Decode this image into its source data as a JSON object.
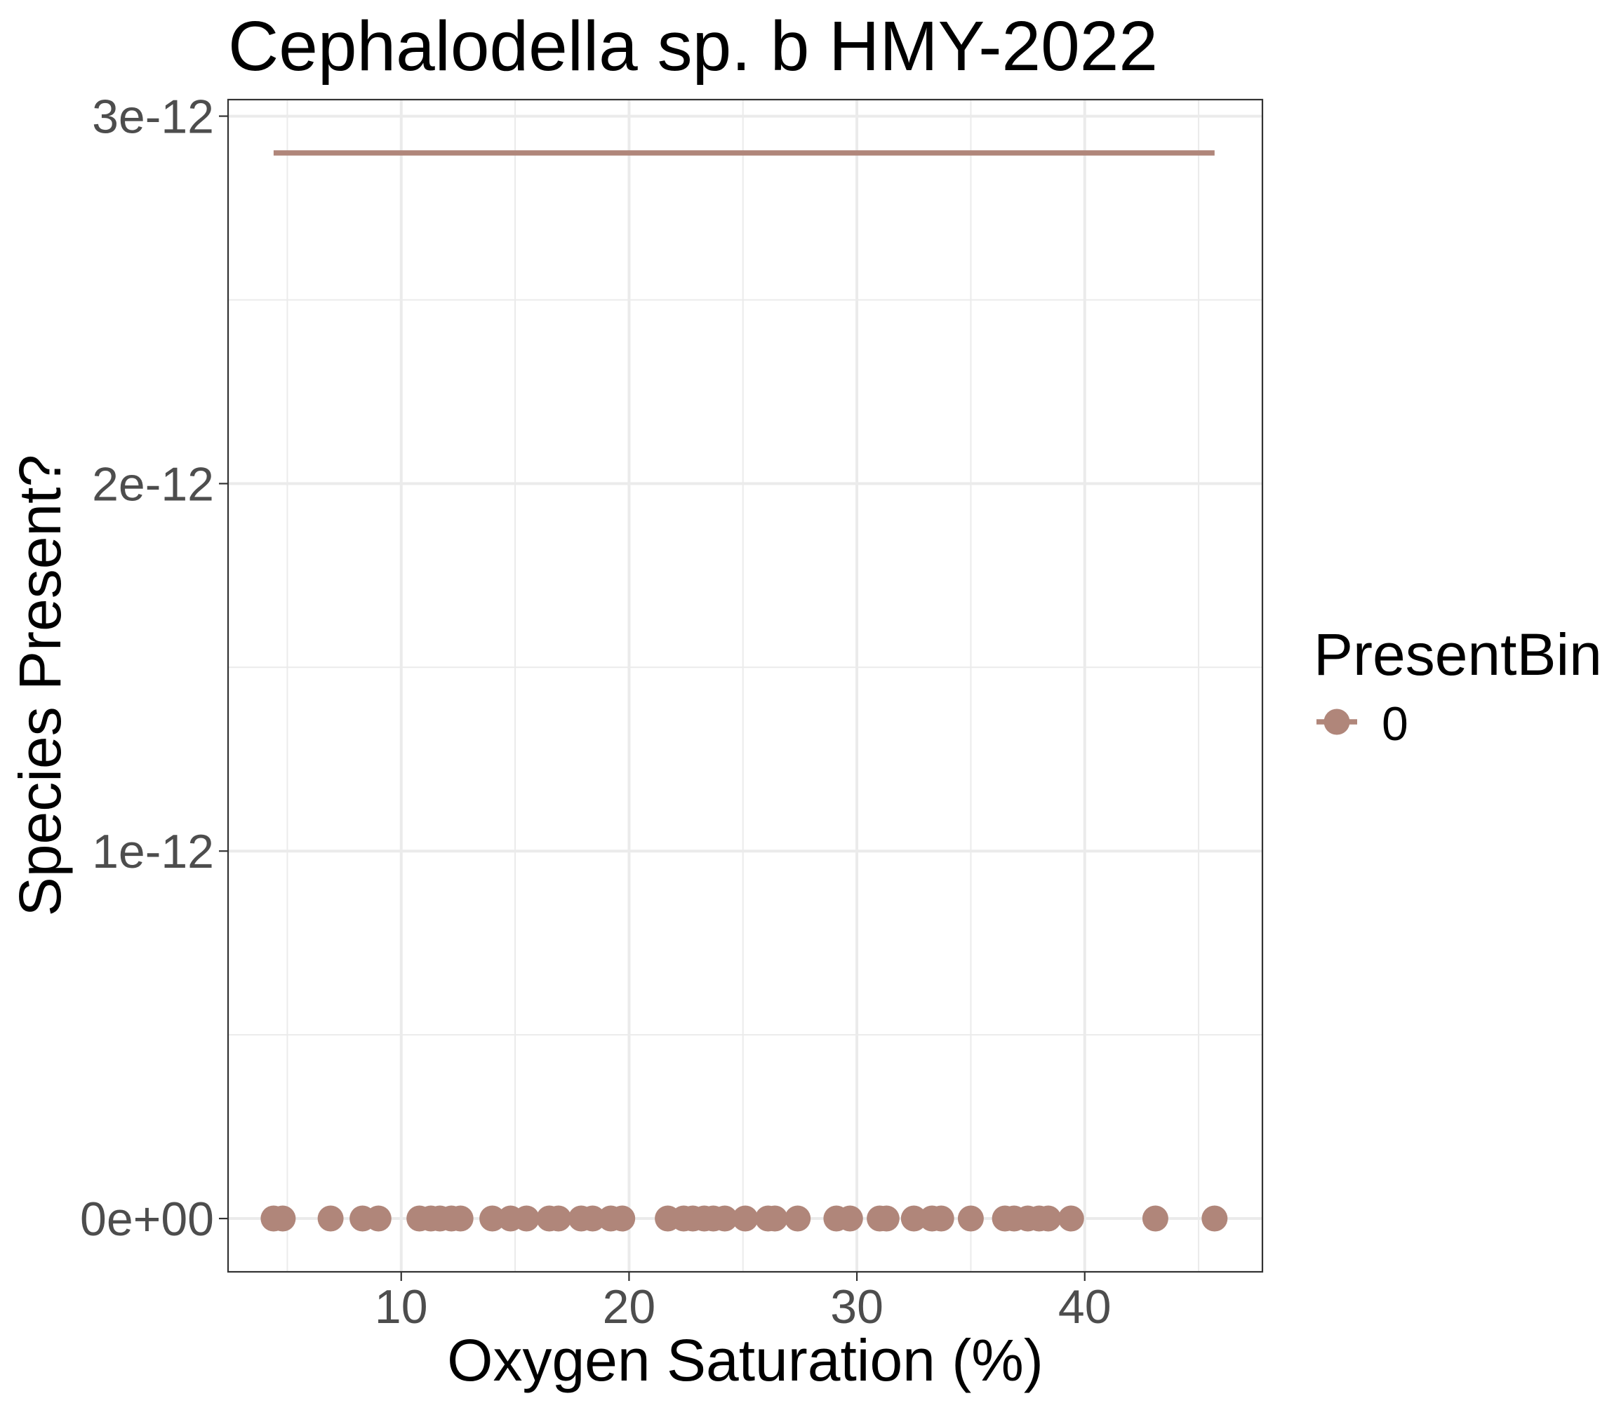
{
  "chart_data": {
    "type": "scatter",
    "title": "Cephalodella sp. b HMY-2022",
    "xlabel": "Oxygen Saturation (%)",
    "ylabel": "Species Present?",
    "xlim": [
      2.4,
      47.8
    ],
    "ylim": [
      -1.45e-13,
      3.045e-12
    ],
    "x_ticks": [
      10,
      20,
      30,
      40
    ],
    "x_tick_labels": [
      "10",
      "20",
      "30",
      "40"
    ],
    "x_minor_ticks": [
      5,
      15,
      25,
      35,
      45
    ],
    "y_ticks": [
      0,
      1e-12,
      2e-12,
      3e-12
    ],
    "y_tick_labels": [
      "0e+00",
      "1e-12",
      "2e-12",
      "3e-12"
    ],
    "y_minor_ticks": [
      5e-13,
      1.5e-12,
      2.5e-12
    ],
    "grid": true,
    "legend": {
      "title": "PresentBin",
      "position": "right"
    },
    "series": [
      {
        "name": "0",
        "color": "#B0867A",
        "points": {
          "x": [
            4.4,
            4.8,
            6.9,
            8.3,
            9.0,
            10.8,
            11.3,
            11.7,
            12.2,
            12.6,
            14.0,
            14.8,
            15.5,
            16.5,
            16.9,
            17.9,
            18.4,
            19.2,
            19.7,
            21.7,
            22.4,
            22.8,
            23.3,
            23.7,
            24.2,
            25.1,
            26.1,
            26.4,
            27.4,
            29.1,
            29.7,
            31.0,
            31.3,
            32.5,
            33.3,
            33.7,
            35.0,
            36.5,
            36.9,
            37.5,
            38.0,
            38.4,
            39.4,
            43.1,
            45.7
          ],
          "y": [
            0,
            0,
            0,
            0,
            0,
            0,
            0,
            0,
            0,
            0,
            0,
            0,
            0,
            0,
            0,
            0,
            0,
            0,
            0,
            0,
            0,
            0,
            0,
            0,
            0,
            0,
            0,
            0,
            0,
            0,
            0,
            0,
            0,
            0,
            0,
            0,
            0,
            0,
            0,
            0,
            0,
            0,
            0,
            0,
            0
          ]
        },
        "line": {
          "x": [
            4.4,
            45.7
          ],
          "y": [
            2.9e-12,
            2.9e-12
          ]
        }
      }
    ]
  }
}
